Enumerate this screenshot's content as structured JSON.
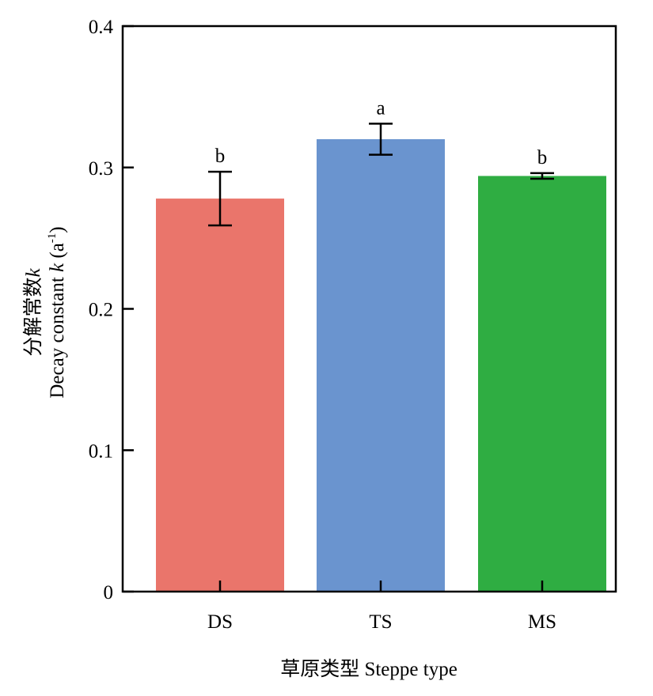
{
  "chart_data": {
    "type": "bar",
    "categories": [
      "DS",
      "TS",
      "MS"
    ],
    "values": [
      0.278,
      0.32,
      0.294
    ],
    "error_low": [
      0.259,
      0.309,
      0.292
    ],
    "error_high": [
      0.297,
      0.331,
      0.296
    ],
    "significance_letters": [
      "b",
      "a",
      "b"
    ],
    "bar_colors": [
      "#ea756b",
      "#6a94cf",
      "#2fad42"
    ],
    "ylim": [
      0,
      0.4
    ],
    "yticks": [
      0,
      0.1,
      0.2,
      0.3,
      0.4
    ],
    "ytick_labels": [
      "0",
      "0.1",
      "0.2",
      "0.3",
      "0.4"
    ],
    "ylabel_cn": "分解常数",
    "ylabel_cn_var": "k",
    "ylabel_en_text": "Decay constant ",
    "ylabel_en_var": "k",
    "ylabel_en_unit_open": " (a",
    "ylabel_en_unit_sup": "-1",
    "ylabel_en_unit_close": ")",
    "xlabel": "草原类型 Steppe type",
    "grid": false,
    "legend": "none"
  }
}
